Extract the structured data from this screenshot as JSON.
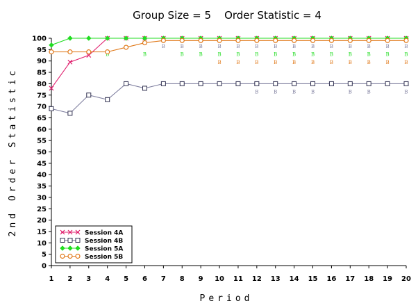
{
  "chart_data": {
    "type": "line",
    "title": "Group Size = 5    Order Statistic = 4",
    "xlabel": "Period",
    "ylabel": "2nd Order Statistic",
    "xlim": [
      1,
      20
    ],
    "ylim": [
      0,
      100
    ],
    "x": [
      1,
      2,
      3,
      4,
      5,
      6,
      7,
      8,
      9,
      10,
      11,
      12,
      13,
      14,
      15,
      16,
      17,
      18,
      19,
      20
    ],
    "x_ticks": [
      1,
      2,
      3,
      4,
      5,
      6,
      7,
      8,
      9,
      10,
      11,
      12,
      13,
      14,
      15,
      16,
      17,
      18,
      19,
      20
    ],
    "y_ticks": [
      0,
      5,
      10,
      15,
      20,
      25,
      30,
      35,
      40,
      45,
      50,
      55,
      60,
      65,
      70,
      75,
      80,
      85,
      90,
      95,
      100
    ],
    "grid": false,
    "legend_position": "bottom-left",
    "series": [
      {
        "name": "Session 4A",
        "color": "#e0206e",
        "marker": "x",
        "values": [
          78,
          89.5,
          92.5,
          100,
          100,
          100,
          100,
          100,
          100,
          100,
          100,
          100,
          100,
          100,
          100,
          100,
          100,
          100,
          100,
          100
        ]
      },
      {
        "name": "Session 4B",
        "color": "#8080a0",
        "marker": "square",
        "values": [
          69,
          67,
          75,
          73,
          80,
          78,
          80,
          80,
          80,
          80,
          80,
          80,
          80,
          80,
          80,
          80,
          80,
          80,
          80,
          80
        ]
      },
      {
        "name": "Session 5A",
        "color": "#22dd22",
        "marker": "diamond",
        "values": [
          97,
          100,
          100,
          100,
          100,
          100,
          100,
          100,
          100,
          100,
          100,
          100,
          100,
          100,
          100,
          100,
          100,
          100,
          100,
          100
        ]
      },
      {
        "name": "Session 5B",
        "color": "#e07818",
        "marker": "circle",
        "values": [
          94,
          94,
          94,
          94,
          96,
          98,
          99,
          99,
          99,
          99,
          99,
          99,
          99,
          99,
          99,
          99,
          99,
          99,
          99,
          99
        ]
      }
    ],
    "annotations": [
      {
        "text": "B",
        "color": "#8080a0",
        "points": [
          [
            7,
            96.5
          ],
          [
            8,
            96.5
          ],
          [
            9,
            96.5
          ],
          [
            10,
            96.5
          ],
          [
            11,
            96.5
          ],
          [
            12,
            96.5
          ],
          [
            13,
            96.5
          ],
          [
            14,
            96.5
          ],
          [
            15,
            96.5
          ],
          [
            16,
            96.5
          ],
          [
            17,
            96.5
          ],
          [
            18,
            96.5
          ],
          [
            19,
            96.5
          ],
          [
            20,
            96.5
          ],
          [
            12,
            76.5
          ],
          [
            13,
            76.5
          ],
          [
            14,
            76.5
          ],
          [
            15,
            76.5
          ],
          [
            17,
            76.5
          ],
          [
            18,
            76.5
          ],
          [
            20,
            76.5
          ]
        ]
      },
      {
        "text": "B",
        "color": "#22dd22",
        "points": [
          [
            4,
            93
          ],
          [
            6,
            93
          ],
          [
            8,
            93
          ],
          [
            9,
            93
          ],
          [
            10,
            93
          ],
          [
            11,
            93
          ],
          [
            12,
            93
          ],
          [
            13,
            93
          ],
          [
            14,
            93
          ],
          [
            15,
            93
          ],
          [
            16,
            93
          ],
          [
            17,
            93
          ],
          [
            18,
            93
          ],
          [
            19,
            93
          ],
          [
            20,
            93
          ]
        ]
      },
      {
        "text": "B",
        "color": "#e07818",
        "points": [
          [
            10,
            89.5
          ],
          [
            11,
            89.5
          ],
          [
            12,
            89.5
          ],
          [
            13,
            89.5
          ],
          [
            14,
            89.5
          ],
          [
            15,
            89.5
          ],
          [
            16,
            89.5
          ],
          [
            17,
            89.5
          ],
          [
            18,
            89.5
          ],
          [
            19,
            89.5
          ],
          [
            20,
            89.5
          ]
        ]
      }
    ]
  }
}
